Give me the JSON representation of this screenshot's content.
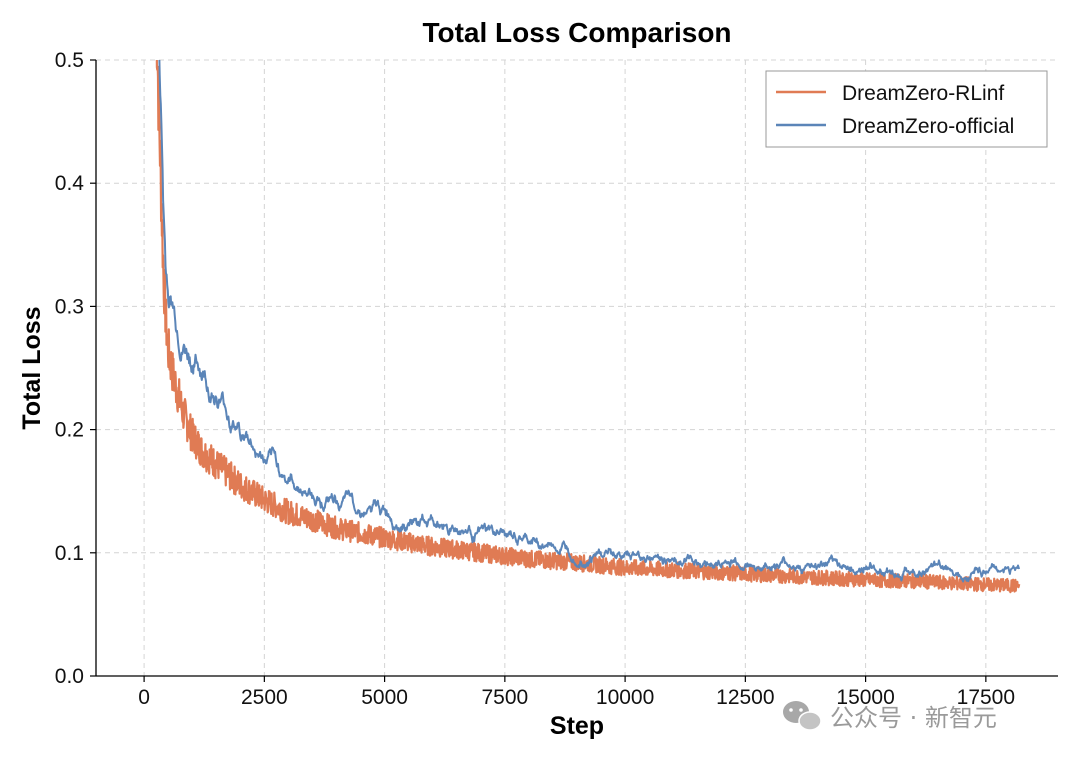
{
  "watermark": {
    "text": "公众号 · 新智元",
    "icon": "wechat-icon"
  },
  "chart_data": {
    "type": "line",
    "title": "Total Loss Comparison",
    "xlabel": "Step",
    "ylabel": "Total Loss",
    "xlim": [
      -1000,
      19000
    ],
    "ylim": [
      0,
      0.5
    ],
    "xticks": [
      0,
      2500,
      5000,
      7500,
      10000,
      12500,
      15000,
      17500
    ],
    "xtick_labels": [
      "0",
      "2500",
      "5000",
      "7500",
      "10000",
      "12500",
      "15000",
      "17500"
    ],
    "yticks": [
      0.0,
      0.1,
      0.2,
      0.3,
      0.4,
      0.5
    ],
    "ytick_labels": [
      "0.0",
      "0.1",
      "0.2",
      "0.3",
      "0.4",
      "0.5"
    ],
    "grid": true,
    "legend_position": "top-right",
    "series": [
      {
        "name": "DreamZero-RLinf",
        "color": "#E07B54",
        "x": [
          250,
          300,
          350,
          400,
          450,
          500,
          600,
          700,
          800,
          1000,
          1200,
          1500,
          2000,
          2500,
          3000,
          3500,
          4000,
          5000,
          6000,
          7000,
          8000,
          9000,
          10000,
          11000,
          12000,
          13000,
          14000,
          15000,
          16000,
          17000,
          18200
        ],
        "y": [
          0.55,
          0.47,
          0.4,
          0.33,
          0.29,
          0.265,
          0.245,
          0.23,
          0.215,
          0.195,
          0.183,
          0.172,
          0.155,
          0.143,
          0.133,
          0.127,
          0.12,
          0.112,
          0.105,
          0.1,
          0.095,
          0.092,
          0.088,
          0.086,
          0.084,
          0.082,
          0.08,
          0.078,
          0.077,
          0.075,
          0.073
        ]
      },
      {
        "name": "DreamZero-official",
        "color": "#5B85B8",
        "x": [
          300,
          350,
          400,
          450,
          500,
          600,
          700,
          800,
          1000,
          1200,
          1500,
          2000,
          2500,
          3000,
          3500,
          4000,
          5000,
          6000,
          7000,
          8000,
          9000,
          10000,
          11000,
          12000,
          13000,
          14000,
          15000,
          16000,
          17000,
          18200
        ],
        "y": [
          0.52,
          0.46,
          0.38,
          0.33,
          0.315,
          0.3,
          0.285,
          0.275,
          0.26,
          0.25,
          0.23,
          0.2,
          0.175,
          0.16,
          0.148,
          0.142,
          0.132,
          0.125,
          0.117,
          0.108,
          0.102,
          0.098,
          0.095,
          0.092,
          0.09,
          0.088,
          0.087,
          0.086,
          0.087,
          0.087
        ]
      }
    ]
  }
}
